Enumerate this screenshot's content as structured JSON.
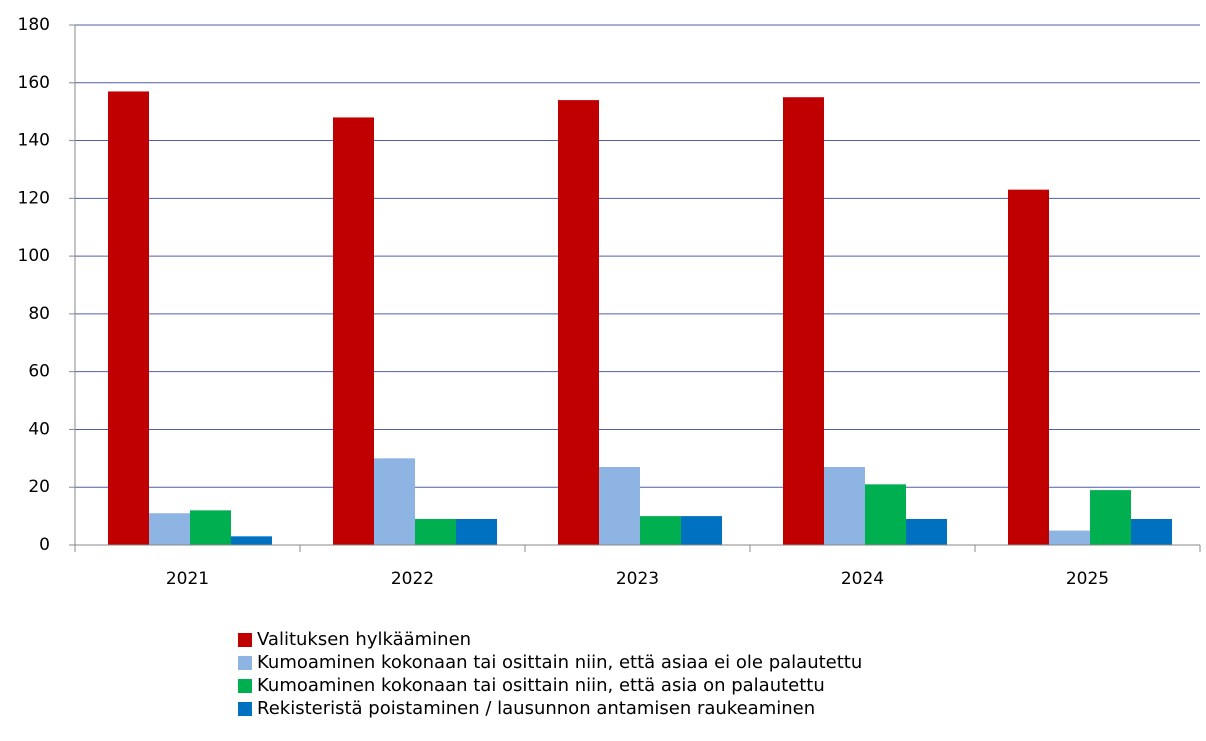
{
  "chart_data": {
    "type": "bar",
    "categories": [
      "2021",
      "2022",
      "2023",
      "2024",
      "2025"
    ],
    "series": [
      {
        "name": "Valituksen hylkääminen",
        "color": "#c00000",
        "values": [
          157,
          148,
          154,
          155,
          123
        ]
      },
      {
        "name": "Kumoaminen kokonaan tai osittain niin, että asiaa ei ole palautettu",
        "color": "#8eb4e3",
        "values": [
          11,
          30,
          27,
          27,
          5
        ]
      },
      {
        "name": "Kumoaminen kokonaan tai osittain niin, että asia on palautettu",
        "color": "#00b050",
        "values": [
          12,
          9,
          10,
          21,
          19
        ]
      },
      {
        "name": "Rekisteristä poistaminen / lausunnon antamisen raukeaminen",
        "color": "#0070c0",
        "values": [
          3,
          9,
          10,
          9,
          9
        ]
      }
    ],
    "ylim": [
      0,
      180
    ],
    "yticks": [
      0,
      20,
      40,
      60,
      80,
      100,
      120,
      140,
      160,
      180
    ],
    "grid": true,
    "legend": "bottom"
  }
}
